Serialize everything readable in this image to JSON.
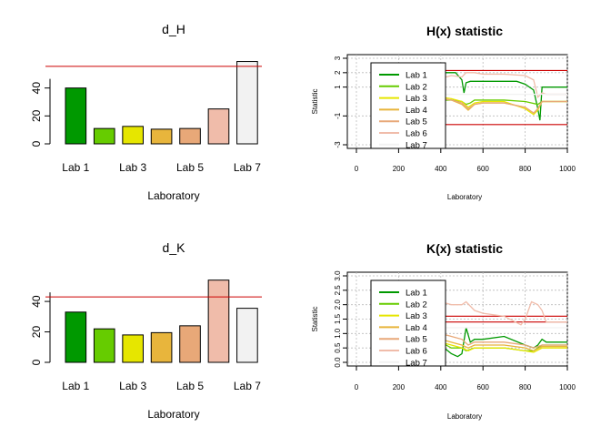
{
  "lab_colors": [
    "#009900",
    "#66cc00",
    "#e6e600",
    "#e8b53c",
    "#e8a878",
    "#f0bcaa",
    "#f2f2f2"
  ],
  "chart_data": [
    {
      "type": "bar",
      "title": "d_H",
      "xlabel": "Laboratory",
      "ylabel": "",
      "categories": [
        "Lab 1",
        "Lab 2",
        "Lab 3",
        "Lab 4",
        "Lab 5",
        "Lab 6",
        "Lab 7"
      ],
      "shown_tick_labels": [
        "Lab 1",
        "Lab 3",
        "Lab 5",
        "Lab 7"
      ],
      "values": [
        40,
        11,
        12.5,
        10.5,
        11,
        25,
        59
      ],
      "ylim": [
        0,
        60
      ],
      "yticks": [
        0,
        20,
        40
      ],
      "reference_line": 55.5,
      "reference_color": "#cc0000"
    },
    {
      "type": "line",
      "title": "H(x) statistic",
      "xlabel": "Laboratory",
      "ylabel": "Statistic",
      "xlim": [
        0,
        1000
      ],
      "xticks": [
        0,
        200,
        400,
        600,
        800,
        1000
      ],
      "ylim": [
        -3,
        3
      ],
      "yticks": [
        -3,
        -1,
        1,
        2,
        3
      ],
      "ytick_labels": [
        "-3",
        "-1",
        "1",
        "2",
        "3"
      ],
      "grid": true,
      "legend": "top-left",
      "series": [
        {
          "name": "Lab 1",
          "color": "#009900",
          "x": [
            400,
            440,
            470,
            500,
            510,
            520,
            540,
            560,
            600,
            700,
            760,
            800,
            840,
            860,
            870,
            880,
            900,
            1000
          ],
          "y": [
            2.0,
            2.0,
            2.0,
            1.5,
            0.6,
            1.3,
            1.4,
            1.4,
            1.4,
            1.4,
            1.4,
            1.2,
            0.8,
            -0.5,
            -1.3,
            1.0,
            1.0,
            1.0
          ]
        },
        {
          "name": "Lab 2",
          "color": "#66cc00",
          "x": [
            400,
            450,
            500,
            520,
            540,
            560,
            600,
            700,
            800,
            860,
            880,
            900,
            1000
          ],
          "y": [
            0.1,
            0.1,
            0.0,
            -0.2,
            -0.1,
            0.1,
            0.1,
            0.1,
            0.0,
            -0.2,
            0.0,
            0.0,
            0.0
          ]
        },
        {
          "name": "Lab 3",
          "color": "#e6e600",
          "x": [
            400,
            450,
            500,
            530,
            560,
            600,
            700,
            800,
            840,
            860,
            880,
            900,
            1000
          ],
          "y": [
            0.3,
            0.2,
            0.0,
            -0.4,
            -0.1,
            0.0,
            0.0,
            -0.5,
            -0.9,
            -0.6,
            0.0,
            0.0,
            0.0
          ]
        },
        {
          "name": "Lab 4",
          "color": "#e8b53c",
          "x": [
            400,
            450,
            500,
            530,
            560,
            600,
            700,
            800,
            840,
            860,
            880,
            900,
            1000
          ],
          "y": [
            0.2,
            0.1,
            -0.2,
            -0.6,
            -0.2,
            -0.1,
            -0.1,
            -0.4,
            -0.8,
            -0.5,
            0.0,
            0.0,
            0.0
          ]
        },
        {
          "name": "Lab 5",
          "color": "#e8a878",
          "x": [
            400,
            450,
            500,
            530,
            560,
            600,
            700,
            800,
            840,
            860,
            880,
            900,
            1000
          ],
          "y": [
            0.2,
            0.1,
            -0.1,
            -0.5,
            -0.2,
            -0.1,
            -0.1,
            -0.4,
            -0.8,
            -0.5,
            0.0,
            0.0,
            0.0
          ]
        },
        {
          "name": "Lab 6",
          "color": "#f0bcaa",
          "x": [
            400,
            450,
            500,
            520,
            560,
            600,
            700,
            800,
            840,
            860,
            880,
            900,
            1000
          ],
          "y": [
            1.6,
            1.8,
            1.7,
            2.0,
            2.0,
            1.9,
            1.9,
            1.8,
            1.5,
            0.3,
            0.6,
            0.5,
            0.5
          ]
        },
        {
          "name": "Lab 7",
          "color": "#f2f2f2",
          "x": [
            400,
            500,
            600,
            700,
            800,
            900,
            1000
          ],
          "y": [
            0.5,
            0.5,
            0.5,
            0.5,
            0.5,
            0.5,
            0.5
          ]
        }
      ],
      "reference_lines": [
        2.15,
        -1.6
      ],
      "reference_color": "#cc0000"
    },
    {
      "type": "bar",
      "title": "d_K",
      "xlabel": "Laboratory",
      "ylabel": "",
      "categories": [
        "Lab 1",
        "Lab 2",
        "Lab 3",
        "Lab 4",
        "Lab 5",
        "Lab 6",
        "Lab 7"
      ],
      "shown_tick_labels": [
        "Lab 1",
        "Lab 3",
        "Lab 5",
        "Lab 7"
      ],
      "values": [
        33,
        22,
        18,
        19.5,
        24,
        54,
        35.5
      ],
      "ylim": [
        0,
        55
      ],
      "yticks": [
        0,
        20,
        40
      ],
      "reference_line": 43,
      "reference_color": "#cc0000"
    },
    {
      "type": "line",
      "title": "K(x) statistic",
      "xlabel": "Laboratory",
      "ylabel": "Statistic",
      "xlim": [
        0,
        1000
      ],
      "xticks": [
        0,
        200,
        400,
        600,
        800,
        1000
      ],
      "ylim": [
        0,
        3
      ],
      "yticks": [
        0,
        0.5,
        1,
        1.5,
        2,
        2.5,
        3
      ],
      "ytick_labels": [
        "0.0",
        "0.5",
        "1.0",
        "1.5",
        "2.0",
        "2.5",
        "3.0"
      ],
      "grid": true,
      "legend": "top-left",
      "series": [
        {
          "name": "Lab 1",
          "color": "#009900",
          "x": [
            400,
            450,
            480,
            500,
            520,
            540,
            560,
            600,
            700,
            800,
            840,
            860,
            880,
            900,
            1000
          ],
          "y": [
            0.6,
            0.3,
            0.2,
            0.3,
            1.2,
            0.7,
            0.8,
            0.8,
            0.9,
            0.6,
            0.5,
            0.6,
            0.8,
            0.7,
            0.7
          ]
        },
        {
          "name": "Lab 2",
          "color": "#66cc00",
          "x": [
            400,
            450,
            500,
            520,
            560,
            600,
            700,
            800,
            840,
            880,
            900,
            1000
          ],
          "y": [
            0.7,
            0.5,
            0.5,
            0.4,
            0.5,
            0.5,
            0.5,
            0.4,
            0.4,
            0.6,
            0.6,
            0.6
          ]
        },
        {
          "name": "Lab 3",
          "color": "#e6e600",
          "x": [
            400,
            450,
            500,
            530,
            560,
            600,
            700,
            800,
            840,
            880,
            900,
            1000
          ],
          "y": [
            0.7,
            0.6,
            0.5,
            0.4,
            0.5,
            0.5,
            0.5,
            0.4,
            0.35,
            0.5,
            0.5,
            0.5
          ]
        },
        {
          "name": "Lab 4",
          "color": "#e8b53c",
          "x": [
            400,
            450,
            500,
            530,
            560,
            600,
            700,
            800,
            840,
            880,
            900,
            1000
          ],
          "y": [
            0.8,
            0.7,
            0.6,
            0.5,
            0.6,
            0.6,
            0.6,
            0.5,
            0.4,
            0.55,
            0.55,
            0.55
          ]
        },
        {
          "name": "Lab 5",
          "color": "#e8a878",
          "x": [
            400,
            450,
            500,
            530,
            560,
            600,
            700,
            800,
            840,
            880,
            900,
            1000
          ],
          "y": [
            1.0,
            0.9,
            0.8,
            0.6,
            0.7,
            0.7,
            0.7,
            0.6,
            0.5,
            0.6,
            0.6,
            0.6
          ]
        },
        {
          "name": "Lab 6",
          "color": "#f0bcaa",
          "x": [
            400,
            450,
            500,
            520,
            560,
            600,
            700,
            780,
            800,
            830,
            860,
            880,
            900,
            1000
          ],
          "y": [
            2.1,
            2.0,
            2.0,
            2.1,
            1.8,
            1.7,
            1.6,
            1.3,
            1.5,
            2.1,
            2.0,
            1.8,
            1.4,
            1.4
          ]
        },
        {
          "name": "Lab 7",
          "color": "#f2f2f2",
          "x": [
            400,
            500,
            600,
            700,
            800,
            900,
            1000
          ],
          "y": [
            1.2,
            1.2,
            1.2,
            1.2,
            1.2,
            1.2,
            1.2
          ]
        }
      ],
      "reference_lines": [
        1.4,
        1.6
      ],
      "reference_color": "#cc0000"
    }
  ]
}
